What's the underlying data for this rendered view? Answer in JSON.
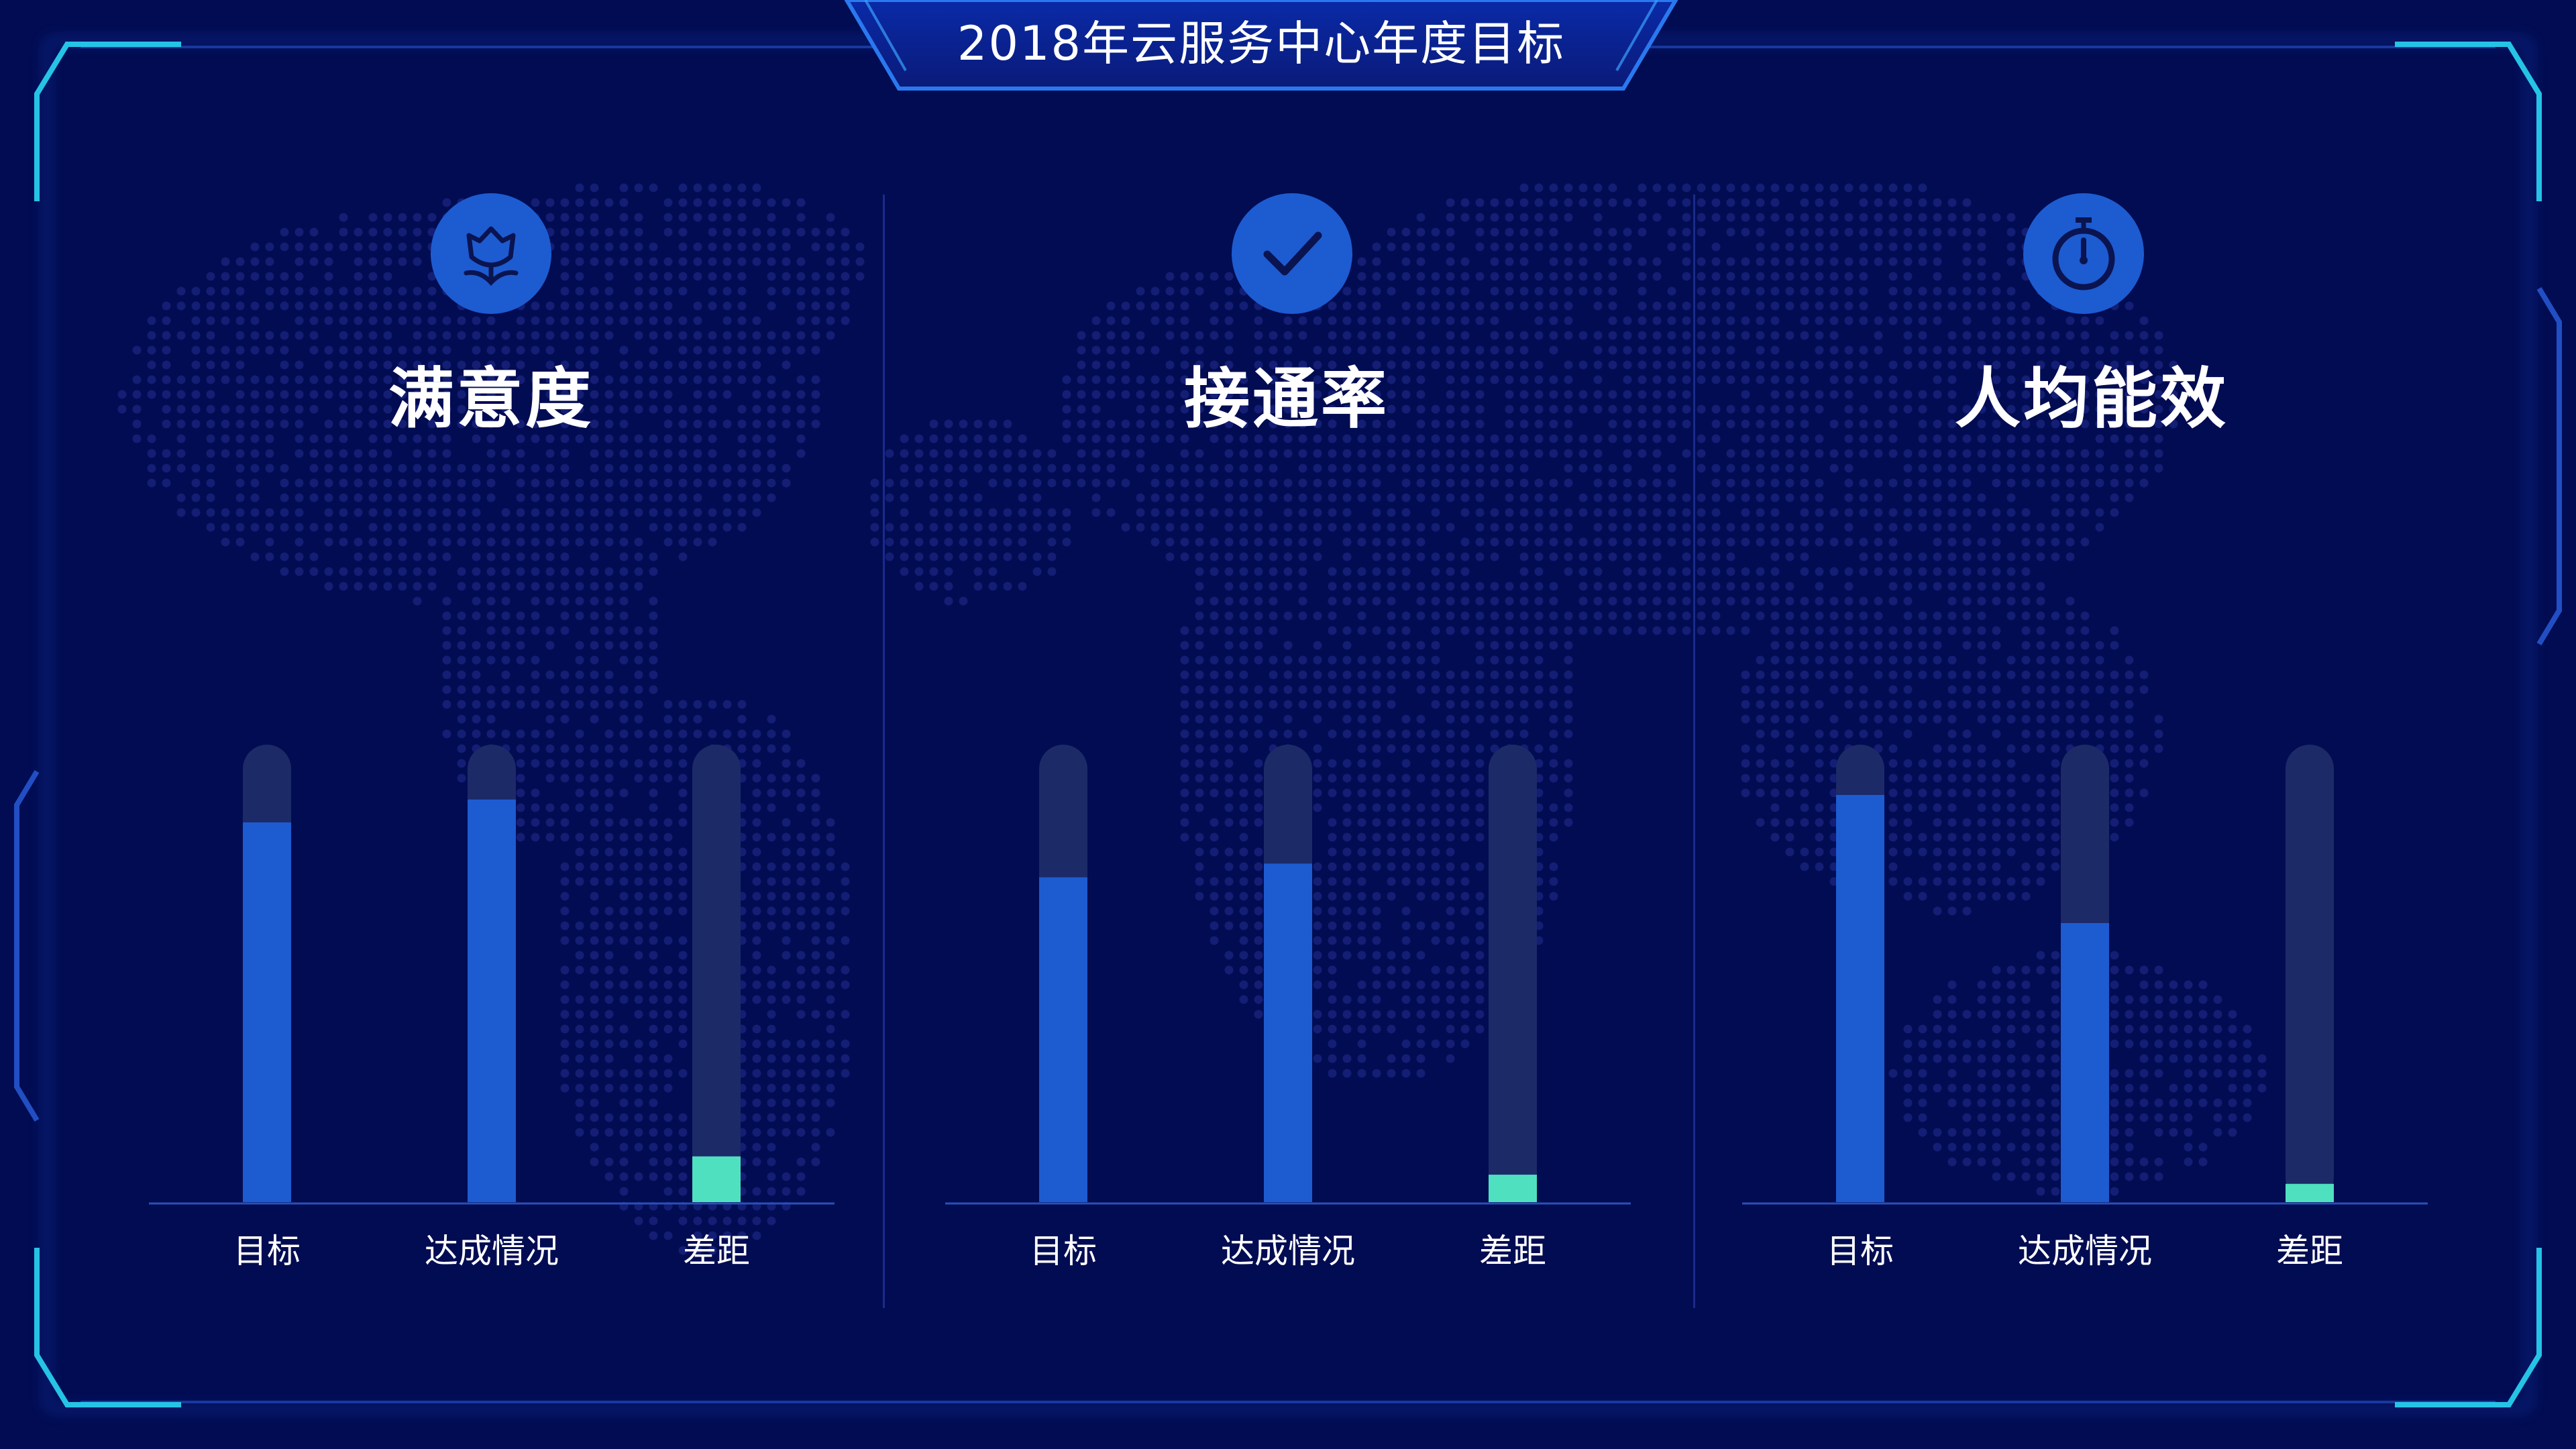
{
  "page_title": "2018年云服务中心年度目标",
  "colors": {
    "background": "#020c52",
    "bar_track": "#1c2a68",
    "bar_fill": "#1d5bd1",
    "gap_fill": "#4fe0c0",
    "frame_accent": "#25c4e6",
    "icon_bg": "#1d5bd1"
  },
  "panels": [
    {
      "title": "满意度",
      "icon": "flower-icon"
    },
    {
      "title": "接通率",
      "icon": "check-icon"
    },
    {
      "title": "人均能效",
      "icon": "stopwatch-icon"
    }
  ],
  "chart_data": [
    {
      "type": "bar",
      "title": "满意度",
      "categories": [
        "目标",
        "达成情况",
        "差距"
      ],
      "values": [
        0.83,
        0.88,
        0.1
      ],
      "ylim": [
        0,
        1
      ],
      "grid": false
    },
    {
      "type": "bar",
      "title": "接通率",
      "categories": [
        "目标",
        "达成情况",
        "差距"
      ],
      "values": [
        0.71,
        0.74,
        0.06
      ],
      "ylim": [
        0,
        1
      ],
      "grid": false
    },
    {
      "type": "bar",
      "title": "人均能效",
      "categories": [
        "目标",
        "达成情况",
        "差距"
      ],
      "values": [
        0.89,
        0.61,
        0.04
      ],
      "ylim": [
        0,
        1
      ],
      "grid": false
    }
  ]
}
